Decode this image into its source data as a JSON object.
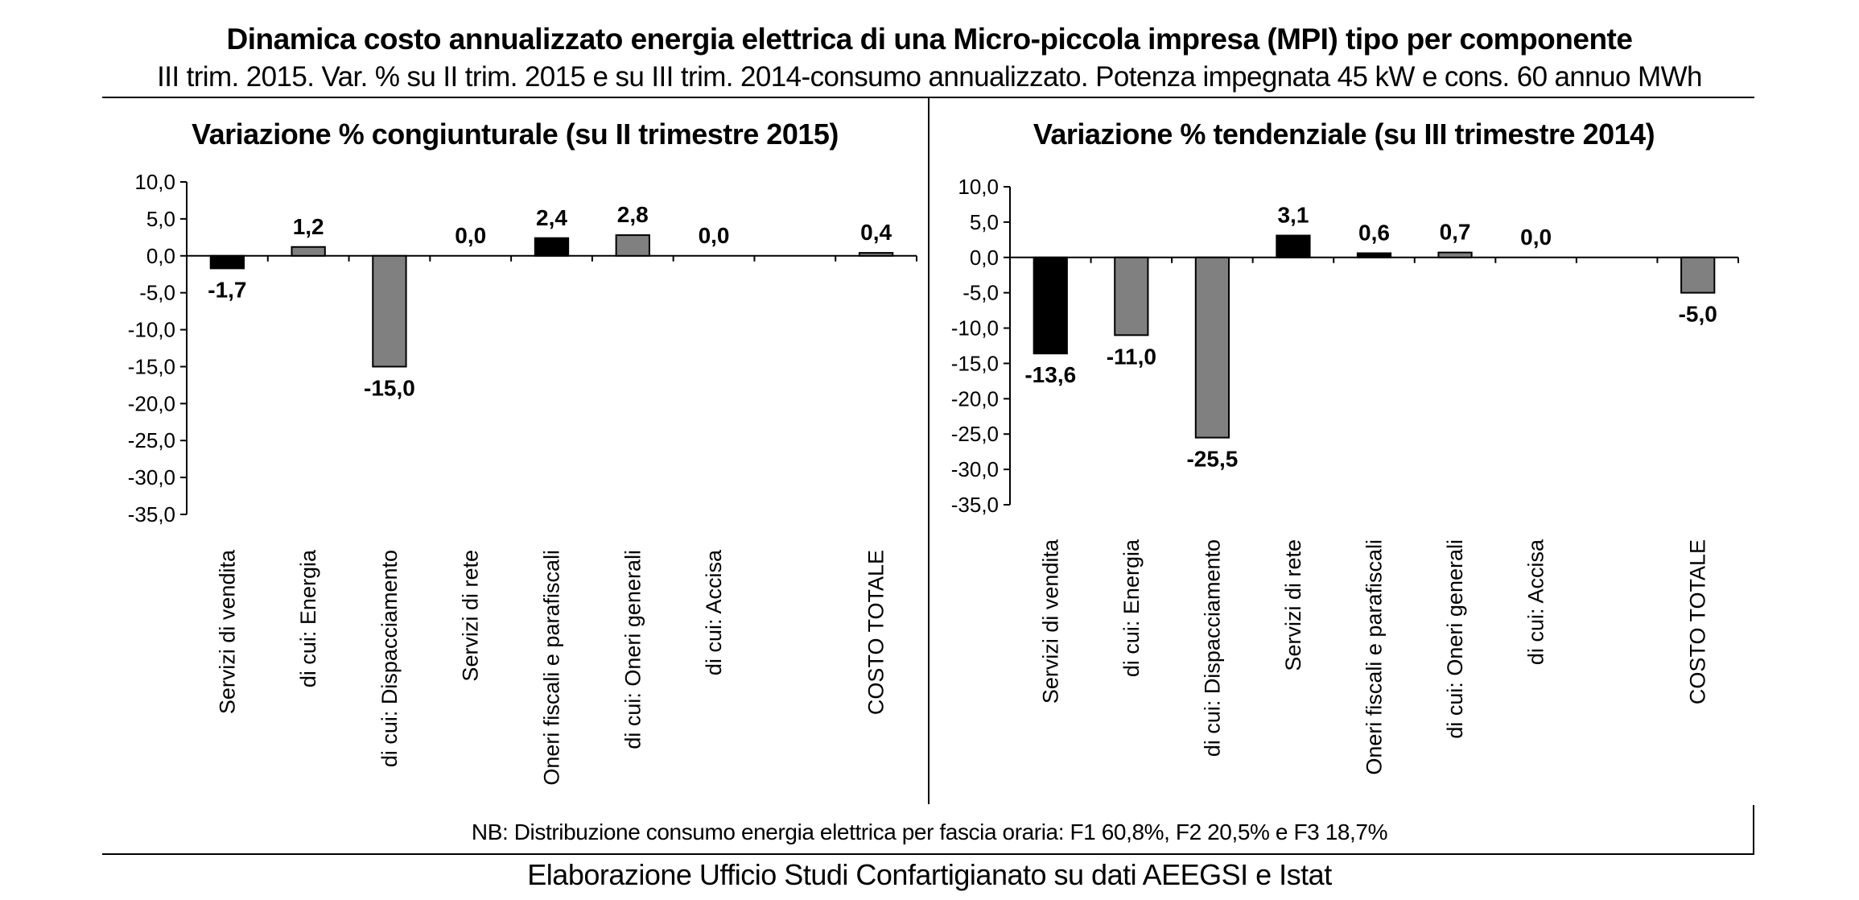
{
  "header": {
    "title": "Dinamica costo annualizzato energia elettrica di una Micro-piccola impresa (MPI) tipo per componente",
    "subtitle": "III trim. 2015. Var. % su II trim. 2015 e su III trim. 2014-consumo annualizzato. Potenza impegnata 45 kW e cons. 60 annuo MWh"
  },
  "footer": {
    "note": "NB: Distribuzione consumo energia elettrica per fascia oraria: F1 60,8%, F2 20,5% e F3 18,7%",
    "source": "Elaborazione Ufficio Studi Confartigianato su dati AEEGSI e Istat"
  },
  "colors": {
    "black_bar": "#000000",
    "gray_bar": "#808080",
    "axis": "#000000"
  },
  "chart_data": [
    {
      "type": "bar",
      "title": "Variazione % congiunturale (su II trimestre 2015)",
      "categories": [
        "Servizi di vendita",
        "di cui: Energia",
        "di cui: Dispacciamento",
        "Servizi di rete",
        "Oneri fiscali e parafiscali",
        "di cui: Oneri generali",
        "di cui: Accisa",
        "",
        "COSTO TOTALE"
      ],
      "values": [
        -1.7,
        1.2,
        -15.0,
        0.0,
        2.4,
        2.8,
        0.0,
        null,
        0.4
      ],
      "value_labels": [
        "-1,7",
        "1,2",
        "-15,0",
        "0,0",
        "2,4",
        "2,8",
        "0,0",
        "",
        "0,4"
      ],
      "bar_colors": [
        "black",
        "gray",
        "gray",
        "gray",
        "black",
        "gray",
        "gray",
        "gray",
        "gray"
      ],
      "ylim": [
        -35,
        10
      ],
      "yticks": [
        10,
        5,
        0,
        -5,
        -10,
        -15,
        -20,
        -25,
        -30,
        -35
      ],
      "ytick_labels": [
        "10,0",
        "5,0",
        "0,0",
        "-5,0",
        "-10,0",
        "-15,0",
        "-20,0",
        "-25,0",
        "-30,0",
        "-35,0"
      ],
      "grid": false,
      "legend": "none"
    },
    {
      "type": "bar",
      "title": "Variazione % tendenziale (su III trimestre 2014)",
      "categories": [
        "Servizi di vendita",
        "di cui: Energia",
        "di cui: Dispacciamento",
        "Servizi di rete",
        "Oneri fiscali e parafiscali",
        "di cui: Oneri generali",
        "di cui: Accisa",
        "",
        "COSTO TOTALE"
      ],
      "values": [
        -13.6,
        -11.0,
        -25.5,
        3.1,
        0.6,
        0.7,
        0.0,
        null,
        -5.0
      ],
      "value_labels": [
        "-13,6",
        "-11,0",
        "-25,5",
        "3,1",
        "0,6",
        "0,7",
        "0,0",
        "",
        "-5,0"
      ],
      "bar_colors": [
        "black",
        "gray",
        "gray",
        "black",
        "black",
        "gray",
        "gray",
        "gray",
        "gray"
      ],
      "ylim": [
        -35,
        10
      ],
      "yticks": [
        10,
        5,
        0,
        -5,
        -10,
        -15,
        -20,
        -25,
        -30,
        -35
      ],
      "ytick_labels": [
        "10,0",
        "5,0",
        "0,0",
        "-5,0",
        "-10,0",
        "-15,0",
        "-20,0",
        "-25,0",
        "-30,0",
        "-35,0"
      ],
      "grid": false,
      "legend": "none"
    }
  ]
}
